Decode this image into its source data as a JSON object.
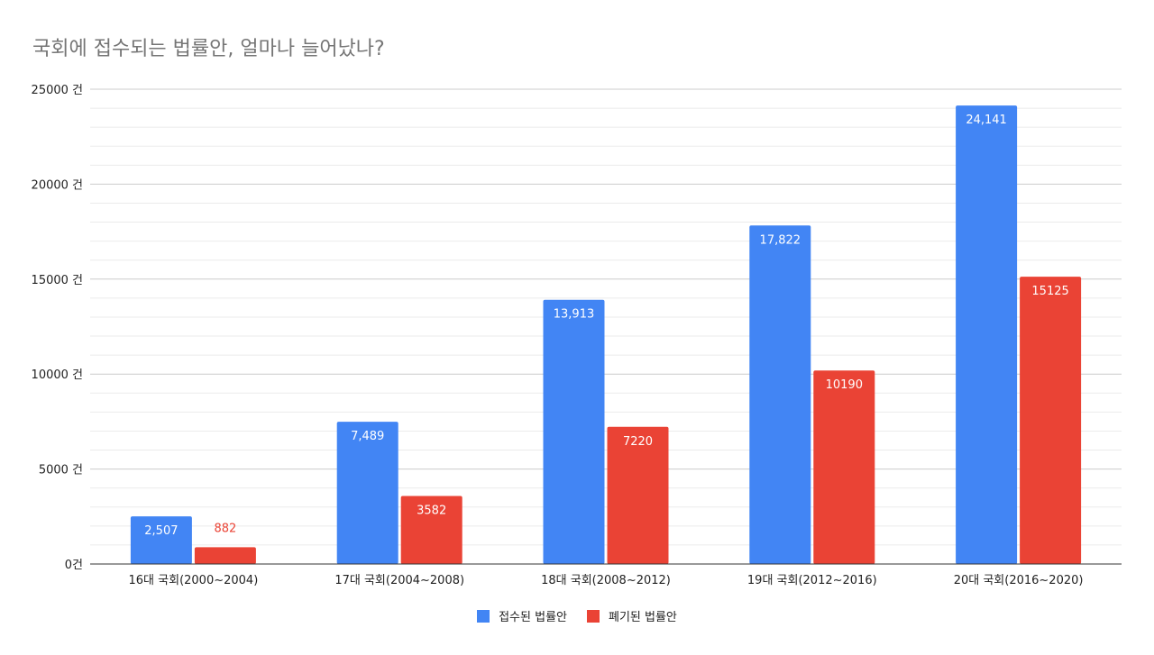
{
  "chart_data": {
    "type": "bar",
    "title": "국회에 접수되는 법률안, 얼마나 늘어났나?",
    "xlabel": "",
    "ylabel": "",
    "ylim": [
      0,
      25000
    ],
    "y_ticks": [
      0,
      5000,
      10000,
      15000,
      20000,
      25000
    ],
    "y_tick_labels": [
      "0건",
      "5000 건",
      "10000 건",
      "15000 건",
      "20000 건",
      "25000 건"
    ],
    "minor_grid_step": 1000,
    "grid": true,
    "legend_position": "bottom",
    "categories": [
      "16대 국회(2000~2004)",
      "17대 국회(2004~2008)",
      "18대 국회(2008~2012)",
      "19대 국회(2012~2016)",
      "20대 국회(2016~2020)"
    ],
    "series": [
      {
        "name": "접수된 법률안",
        "color": "#4285f4",
        "values": [
          2507,
          7489,
          13913,
          17822,
          24141
        ],
        "labels": [
          "2,507",
          "7,489",
          "13,913",
          "17,822",
          "24,141"
        ]
      },
      {
        "name": "폐기된 법률안",
        "color": "#ea4335",
        "values": [
          882,
          3582,
          7220,
          10190,
          15125
        ],
        "labels": [
          "882",
          "3582",
          "7220",
          "10190",
          "15125"
        ]
      }
    ]
  }
}
